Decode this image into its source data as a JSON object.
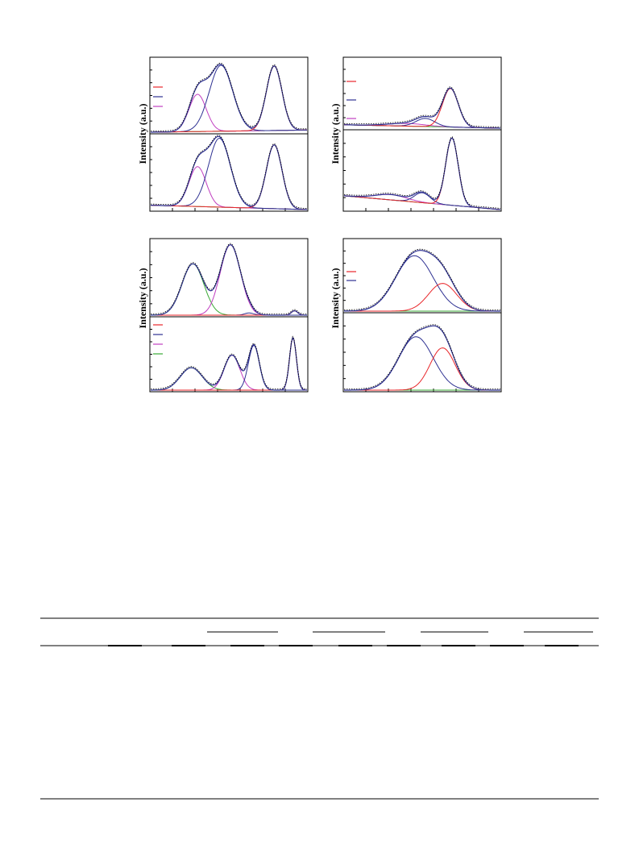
{
  "figure": {
    "panels": [
      {
        "id": "a",
        "ylabel": "Intensity (a.u.)",
        "legend_colors": [
          "#e8262a",
          "#2e3192",
          "#c03fc0"
        ],
        "subplots": [
          {
            "baseline": [
              0.0,
              0.03
            ],
            "peaks": [
              {
                "color": "#c03fc0",
                "center": 0.3,
                "width": 0.055,
                "height": 0.52
              },
              {
                "color": "#2e3192",
                "center": 0.45,
                "width": 0.075,
                "height": 0.92
              },
              {
                "color": "#e8262a",
                "center": 0.79,
                "width": 0.05,
                "height": 0.9
              }
            ]
          },
          {
            "baseline": [
              0.06,
              0.0
            ],
            "peaks": [
              {
                "color": "#c03fc0",
                "center": 0.3,
                "width": 0.055,
                "height": 0.55
              },
              {
                "color": "#2e3192",
                "center": 0.44,
                "width": 0.07,
                "height": 0.95
              },
              {
                "color": "#e8262a",
                "center": 0.79,
                "width": 0.05,
                "height": 0.88
              }
            ]
          }
        ]
      },
      {
        "id": "b",
        "ylabel": "Intensity (a.u.)",
        "legend_colors": [
          "#e8262a",
          "#2e3192",
          "#c03fc0"
        ],
        "subplots": [
          {
            "baseline": [
              0.05,
              0.0
            ],
            "peaks": [
              {
                "color": "#c03fc0",
                "center": 0.4,
                "width": 0.12,
                "height": 0.04
              },
              {
                "color": "#2e3192",
                "center": 0.52,
                "width": 0.06,
                "height": 0.12
              },
              {
                "color": "#e8262a",
                "center": 0.68,
                "width": 0.05,
                "height": 0.57
              }
            ]
          },
          {
            "baseline": [
              0.18,
              0.0
            ],
            "peaks": [
              {
                "color": "#c03fc0",
                "center": 0.3,
                "width": 0.1,
                "height": 0.07
              },
              {
                "color": "#2e3192",
                "center": 0.5,
                "width": 0.05,
                "height": 0.13
              },
              {
                "color": "#e8262a",
                "center": 0.69,
                "width": 0.04,
                "height": 0.88
              }
            ]
          }
        ]
      },
      {
        "id": "c",
        "ylabel": "Intensity (a.u.)",
        "legend_colors": [
          "#e8262a",
          "#2e3192",
          "#c03fc0",
          "#3aa935"
        ],
        "subplots": [
          {
            "baseline": [
              0.0,
              0.0
            ],
            "peaks": [
              {
                "color": "#3aa935",
                "center": 0.27,
                "width": 0.07,
                "height": 0.7
              },
              {
                "color": "#c03fc0",
                "center": 0.51,
                "width": 0.065,
                "height": 0.96
              },
              {
                "color": "#2e3192",
                "center": 0.63,
                "width": 0.03,
                "height": 0.03
              },
              {
                "color": "#e8262a",
                "center": 0.92,
                "width": 0.02,
                "height": 0.06
              }
            ]
          },
          {
            "baseline": [
              0.0,
              0.0
            ],
            "peaks": [
              {
                "color": "#3aa935",
                "center": 0.26,
                "width": 0.07,
                "height": 0.32
              },
              {
                "color": "#c03fc0",
                "center": 0.52,
                "width": 0.05,
                "height": 0.5
              },
              {
                "color": "#2e3192",
                "center": 0.66,
                "width": 0.035,
                "height": 0.64
              },
              {
                "color": "#e8262a",
                "center": 0.91,
                "width": 0.022,
                "height": 0.75
              }
            ]
          }
        ]
      },
      {
        "id": "d",
        "ylabel": "Intensity (a.u.)",
        "legend_colors": [
          "#e8262a",
          "#2e3192"
        ],
        "subplots": [
          {
            "baseline": [
              0.0,
              0.0
            ],
            "peaks": [
              {
                "color": "#2e3192",
                "center": 0.45,
                "width": 0.12,
                "height": 0.8
              },
              {
                "color": "#e8262a",
                "center": 0.63,
                "width": 0.09,
                "height": 0.4
              }
            ]
          },
          {
            "baseline": [
              0.0,
              0.0
            ],
            "peaks": [
              {
                "color": "#2e3192",
                "center": 0.46,
                "width": 0.11,
                "height": 0.72
              },
              {
                "color": "#e8262a",
                "center": 0.63,
                "width": 0.08,
                "height": 0.57
              }
            ]
          }
        ]
      }
    ]
  }
}
